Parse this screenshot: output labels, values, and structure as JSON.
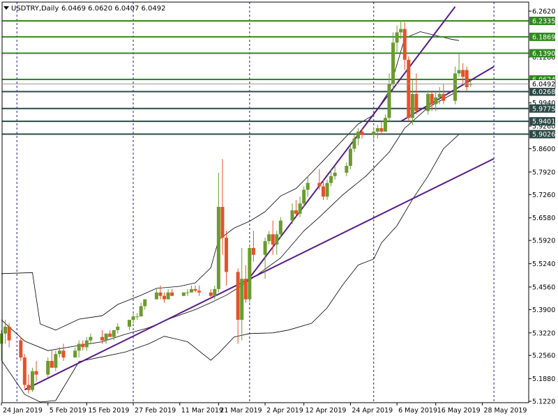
{
  "header": {
    "symbol": "USDTRY,Daily",
    "ohlc": "6.0469 6.0620 6.0407 6.0492",
    "current_price": "6.0492"
  },
  "colors": {
    "bull": "#6a9b2e",
    "bear": "#e8502a",
    "support_green": "#2f8a1e",
    "support_dark": "#2c4a48",
    "trendline": "#5a1a8a",
    "bands": "#000000",
    "grid": "#1a1aa0"
  },
  "chart_data": {
    "type": "candlestick",
    "ylim": [
      5.12,
      6.262
    ],
    "yticks": [
      "6.2620",
      "6.1280",
      "5.9940",
      "5.9260",
      "5.8600",
      "5.7920",
      "5.7260",
      "5.6580",
      "5.5920",
      "5.5240",
      "5.4560",
      "5.3900",
      "5.3220",
      "5.2560",
      "5.1880",
      "5.1220"
    ],
    "xticks": [
      {
        "label": "24 Jan 2019",
        "day": 0
      },
      {
        "label": "5 Feb 2019",
        "day": 12
      },
      {
        "label": "15 Feb 2019",
        "day": 22
      },
      {
        "label": "27 Feb 2019",
        "day": 34
      },
      {
        "label": "11 Mar 2019",
        "day": 46
      },
      {
        "label": "21 Mar 2019",
        "day": 56
      },
      {
        "label": "2 Apr 2019",
        "day": 68
      },
      {
        "label": "12 Apr 2019",
        "day": 78
      },
      {
        "label": "24 Apr 2019",
        "day": 90
      },
      {
        "label": "6 May 2019",
        "day": 102
      },
      {
        "label": "16 May 2019",
        "day": 112
      },
      {
        "label": "28 May 2019",
        "day": 124
      }
    ],
    "x_start_date": "2019-01-24",
    "levels": [
      {
        "value": 6.2335,
        "label": "6.2335",
        "style": "green"
      },
      {
        "value": 6.1869,
        "label": "6.1869",
        "style": "green"
      },
      {
        "value": 6.139,
        "label": "6.1390",
        "style": "green"
      },
      {
        "value": 6.0624,
        "label": "6.0624",
        "style": "green"
      },
      {
        "value": 6.0268,
        "label": "6.0268",
        "style": "dark"
      },
      {
        "value": 5.9775,
        "label": "5.9775",
        "style": "dark"
      },
      {
        "value": 5.9401,
        "label": "5.9401",
        "style": "dark"
      },
      {
        "value": 5.9026,
        "label": "5.9026",
        "style": "dark"
      }
    ],
    "trendlines": [
      {
        "from": [
          "2019-01-30",
          5.156
        ],
        "to": [
          "2019-05-31",
          5.831
        ]
      },
      {
        "from": [
          "2019-03-28",
          5.468
        ],
        "to": [
          "2019-05-21",
          6.275
        ]
      },
      {
        "from": [
          "2019-05-07",
          5.94
        ],
        "to": [
          "2019-05-31",
          6.1
        ]
      }
    ],
    "vlines": [
      "2019-01-28",
      "2019-02-27",
      "2019-03-29",
      "2019-04-30",
      "2019-05-31"
    ],
    "upper_band": [
      [
        0,
        5.495
      ],
      [
        8,
        5.498
      ],
      [
        10,
        5.348
      ],
      [
        14,
        5.33
      ],
      [
        20,
        5.362
      ],
      [
        26,
        5.372
      ],
      [
        30,
        5.405
      ],
      [
        36,
        5.432
      ],
      [
        40,
        5.452
      ],
      [
        46,
        5.458
      ],
      [
        50,
        5.468
      ],
      [
        54,
        5.512
      ],
      [
        56,
        5.594
      ],
      [
        60,
        5.628
      ],
      [
        64,
        5.648
      ],
      [
        68,
        5.676
      ],
      [
        72,
        5.722
      ],
      [
        76,
        5.744
      ],
      [
        80,
        5.79
      ],
      [
        84,
        5.837
      ],
      [
        88,
        5.885
      ],
      [
        92,
        5.932
      ],
      [
        96,
        5.959
      ],
      [
        100,
        6.029
      ],
      [
        104,
        6.183
      ],
      [
        108,
        6.202
      ],
      [
        112,
        6.191
      ],
      [
        116,
        6.18
      ],
      [
        118,
        6.176
      ]
    ],
    "mid_band": [
      [
        0,
        5.36
      ],
      [
        6,
        5.298
      ],
      [
        12,
        5.27
      ],
      [
        20,
        5.285
      ],
      [
        26,
        5.296
      ],
      [
        32,
        5.318
      ],
      [
        38,
        5.337
      ],
      [
        44,
        5.366
      ],
      [
        50,
        5.39
      ],
      [
        54,
        5.41
      ],
      [
        58,
        5.432
      ],
      [
        62,
        5.46
      ],
      [
        66,
        5.492
      ],
      [
        72,
        5.541
      ],
      [
        78,
        5.62
      ],
      [
        82,
        5.66
      ],
      [
        88,
        5.725
      ],
      [
        94,
        5.78
      ],
      [
        100,
        5.85
      ],
      [
        104,
        5.92
      ],
      [
        110,
        5.98
      ],
      [
        116,
        6.018
      ],
      [
        118,
        6.03
      ]
    ],
    "lower_band": [
      [
        0,
        5.242
      ],
      [
        6,
        5.142
      ],
      [
        10,
        5.12
      ],
      [
        14,
        5.124
      ],
      [
        20,
        5.238
      ],
      [
        26,
        5.252
      ],
      [
        32,
        5.266
      ],
      [
        38,
        5.29
      ],
      [
        42,
        5.312
      ],
      [
        48,
        5.296
      ],
      [
        54,
        5.242
      ],
      [
        56,
        5.262
      ],
      [
        60,
        5.31
      ],
      [
        64,
        5.32
      ],
      [
        70,
        5.322
      ],
      [
        74,
        5.33
      ],
      [
        80,
        5.35
      ],
      [
        84,
        5.395
      ],
      [
        88,
        5.462
      ],
      [
        92,
        5.52
      ],
      [
        96,
        5.538
      ],
      [
        98,
        5.585
      ],
      [
        102,
        5.635
      ],
      [
        106,
        5.712
      ],
      [
        110,
        5.78
      ],
      [
        114,
        5.86
      ],
      [
        118,
        5.902
      ]
    ],
    "candles": [
      [
        0,
        5.29,
        5.33,
        5.24,
        5.32
      ],
      [
        1,
        5.32,
        5.36,
        5.29,
        5.34
      ],
      [
        2,
        5.34,
        5.35,
        5.28,
        5.3
      ],
      [
        5,
        5.3,
        5.31,
        5.24,
        5.25
      ],
      [
        6,
        5.25,
        5.26,
        5.16,
        5.17
      ],
      [
        7,
        5.17,
        5.2,
        5.145,
        5.155
      ],
      [
        8,
        5.155,
        5.22,
        5.15,
        5.21
      ],
      [
        9,
        5.21,
        5.24,
        5.18,
        5.2
      ],
      [
        12,
        5.2,
        5.25,
        5.19,
        5.24
      ],
      [
        13,
        5.24,
        5.27,
        5.23,
        5.22
      ],
      [
        14,
        5.22,
        5.27,
        5.21,
        5.26
      ],
      [
        15,
        5.26,
        5.28,
        5.25,
        5.27
      ],
      [
        16,
        5.27,
        5.29,
        5.24,
        5.25
      ],
      [
        19,
        5.25,
        5.28,
        5.25,
        5.27
      ],
      [
        20,
        5.27,
        5.3,
        5.25,
        5.29
      ],
      [
        21,
        5.29,
        5.3,
        5.27,
        5.28
      ],
      [
        22,
        5.28,
        5.31,
        5.27,
        5.3
      ],
      [
        23,
        5.3,
        5.32,
        5.29,
        5.31
      ],
      [
        26,
        5.31,
        5.33,
        5.29,
        5.3
      ],
      [
        27,
        5.3,
        5.32,
        5.29,
        5.32
      ],
      [
        28,
        5.32,
        5.33,
        5.31,
        5.31
      ],
      [
        29,
        5.31,
        5.33,
        5.3,
        5.33
      ],
      [
        30,
        5.33,
        5.35,
        5.32,
        5.34
      ],
      [
        33,
        5.34,
        5.36,
        5.33,
        5.36
      ],
      [
        34,
        5.36,
        5.38,
        5.35,
        5.37
      ],
      [
        35,
        5.37,
        5.38,
        5.36,
        5.37
      ],
      [
        36,
        5.37,
        5.41,
        5.37,
        5.4
      ],
      [
        37,
        5.4,
        5.42,
        5.39,
        5.42
      ],
      [
        40,
        5.42,
        5.45,
        5.42,
        5.44
      ],
      [
        41,
        5.44,
        5.46,
        5.42,
        5.43
      ],
      [
        42,
        5.43,
        5.44,
        5.41,
        5.42
      ],
      [
        43,
        5.42,
        5.45,
        5.42,
        5.44
      ],
      [
        44,
        5.44,
        5.45,
        5.43,
        5.43
      ],
      [
        47,
        5.43,
        5.44,
        5.43,
        5.44
      ],
      [
        48,
        5.44,
        5.45,
        5.43,
        5.44
      ],
      [
        49,
        5.44,
        5.46,
        5.44,
        5.45
      ],
      [
        50,
        5.45,
        5.46,
        5.44,
        5.445
      ],
      [
        51,
        5.445,
        5.46,
        5.43,
        5.44
      ],
      [
        54,
        5.44,
        5.45,
        5.42,
        5.43
      ],
      [
        55,
        5.43,
        5.46,
        5.42,
        5.45
      ],
      [
        56,
        5.45,
        5.79,
        5.44,
        5.69
      ],
      [
        57,
        5.69,
        5.83,
        5.55,
        5.6
      ],
      [
        58,
        5.6,
        5.62,
        5.46,
        5.5
      ],
      [
        61,
        5.5,
        5.51,
        5.29,
        5.36
      ],
      [
        62,
        5.36,
        5.57,
        5.3,
        5.48
      ],
      [
        63,
        5.48,
        5.52,
        5.41,
        5.42
      ],
      [
        64,
        5.42,
        5.58,
        5.41,
        5.57
      ],
      [
        65,
        5.57,
        5.62,
        5.53,
        5.55
      ],
      [
        68,
        5.55,
        5.6,
        5.48,
        5.59
      ],
      [
        69,
        5.59,
        5.62,
        5.58,
        5.61
      ],
      [
        70,
        5.61,
        5.65,
        5.55,
        5.58
      ],
      [
        71,
        5.58,
        5.62,
        5.55,
        5.61
      ],
      [
        72,
        5.61,
        5.66,
        5.6,
        5.65
      ],
      [
        75,
        5.65,
        5.7,
        5.64,
        5.68
      ],
      [
        76,
        5.68,
        5.71,
        5.66,
        5.67
      ],
      [
        77,
        5.67,
        5.72,
        5.66,
        5.7
      ],
      [
        78,
        5.7,
        5.75,
        5.69,
        5.74
      ],
      [
        79,
        5.74,
        5.78,
        5.72,
        5.76
      ],
      [
        82,
        5.76,
        5.8,
        5.74,
        5.75
      ],
      [
        83,
        5.75,
        5.77,
        5.71,
        5.72
      ],
      [
        84,
        5.72,
        5.77,
        5.71,
        5.76
      ],
      [
        85,
        5.76,
        5.8,
        5.75,
        5.78
      ],
      [
        86,
        5.78,
        5.81,
        5.77,
        5.79
      ],
      [
        89,
        5.79,
        5.82,
        5.78,
        5.81
      ],
      [
        90,
        5.81,
        5.87,
        5.8,
        5.86
      ],
      [
        91,
        5.86,
        5.9,
        5.85,
        5.89
      ],
      [
        92,
        5.89,
        5.92,
        5.87,
        5.91
      ],
      [
        93,
        5.91,
        5.92,
        5.89,
        5.9
      ],
      [
        96,
        5.9,
        5.92,
        5.88,
        5.91
      ],
      [
        97,
        5.91,
        5.93,
        5.89,
        5.92
      ],
      [
        98,
        5.92,
        5.94,
        5.9,
        5.91
      ],
      [
        99,
        5.91,
        5.96,
        5.91,
        5.95
      ],
      [
        100,
        5.95,
        6.08,
        5.94,
        6.05
      ],
      [
        101,
        6.05,
        6.2,
        6.03,
        6.17
      ],
      [
        102,
        6.17,
        6.22,
        6.14,
        6.2
      ],
      [
        103,
        6.2,
        6.235,
        6.18,
        6.21
      ],
      [
        104,
        6.21,
        6.23,
        6.09,
        6.12
      ],
      [
        105,
        6.12,
        6.13,
        5.94,
        5.95
      ],
      [
        106,
        5.95,
        6.06,
        5.93,
        6.02
      ],
      [
        107,
        6.02,
        6.08,
        5.96,
        5.97
      ],
      [
        110,
        5.97,
        6.03,
        5.96,
        6.02
      ],
      [
        111,
        6.02,
        6.03,
        5.97,
        5.99
      ],
      [
        112,
        5.99,
        6.03,
        5.97,
        6.01
      ],
      [
        113,
        6.01,
        6.04,
        5.99,
        6.02
      ],
      [
        114,
        6.02,
        6.05,
        5.99,
        6.0
      ],
      [
        117,
        6.0,
        6.1,
        5.99,
        6.08
      ],
      [
        118,
        6.08,
        6.14,
        6.07,
        6.09
      ],
      [
        119,
        6.09,
        6.11,
        6.05,
        6.07
      ],
      [
        120,
        6.09,
        6.1,
        6.03,
        6.04
      ],
      [
        121,
        6.0469,
        6.062,
        6.0407,
        6.0492
      ]
    ]
  }
}
